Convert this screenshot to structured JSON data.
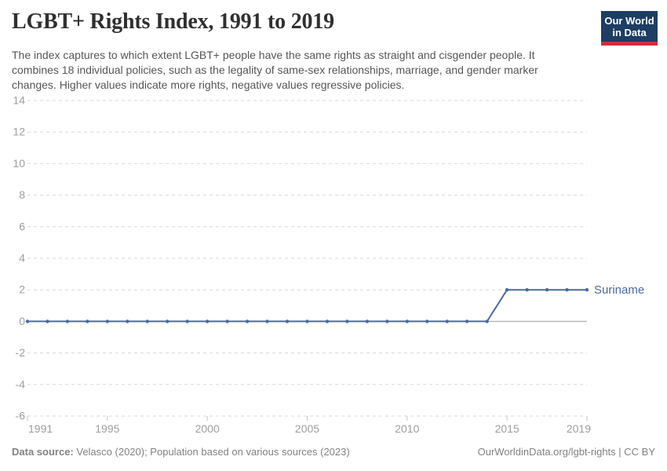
{
  "header": {
    "title": "LGBT+ Rights Index, 1991 to 2019",
    "subtitle": "The index captures to which extent LGBT+ people have the same rights as straight and cisgender people. It combines 18 individual policies, such as the legality of same-sex relationships, marriage, and gender marker changes. Higher values indicate more rights, negative values regressive policies.",
    "logo": {
      "line1": "Our World",
      "line2": "in Data"
    }
  },
  "colors": {
    "series_line": "#4c6a9c",
    "logo_bg": "#1d3d63",
    "logo_stripe": "#d12c3d",
    "gridline": "#d9d9d9",
    "zero_line": "#b3b3b3",
    "axis_tick": "#c6c6c6",
    "axis_label": "#9e9e9e"
  },
  "chart_data": {
    "type": "line",
    "title": "LGBT+ Rights Index, 1991 to 2019",
    "xlabel": "",
    "ylabel": "",
    "x": [
      1991,
      1992,
      1993,
      1994,
      1995,
      1996,
      1997,
      1998,
      1999,
      2000,
      2001,
      2002,
      2003,
      2004,
      2005,
      2006,
      2007,
      2008,
      2009,
      2010,
      2011,
      2012,
      2013,
      2014,
      2015,
      2016,
      2017,
      2018,
      2019
    ],
    "series": [
      {
        "name": "Suriname",
        "values": [
          0,
          0,
          0,
          0,
          0,
          0,
          0,
          0,
          0,
          0,
          0,
          0,
          0,
          0,
          0,
          0,
          0,
          0,
          0,
          0,
          0,
          0,
          0,
          0,
          2,
          2,
          2,
          2,
          2
        ]
      }
    ],
    "xlim": [
      1991,
      2019
    ],
    "ylim": [
      -6,
      14
    ],
    "y_ticks": [
      -6,
      -4,
      -2,
      0,
      2,
      4,
      6,
      8,
      10,
      12,
      14
    ],
    "x_ticks": [
      1991,
      1995,
      2000,
      2005,
      2010,
      2015,
      2019
    ],
    "grid": "horizontal dashed, solid line at 0",
    "legend_position": "label at end of line",
    "markers": "dot at every year"
  },
  "footer": {
    "source_label": "Data source:",
    "source_text": " Velasco (2020); Population based on various sources (2023)",
    "link_text": "OurWorldinData.org/lgbt-rights | CC BY"
  }
}
